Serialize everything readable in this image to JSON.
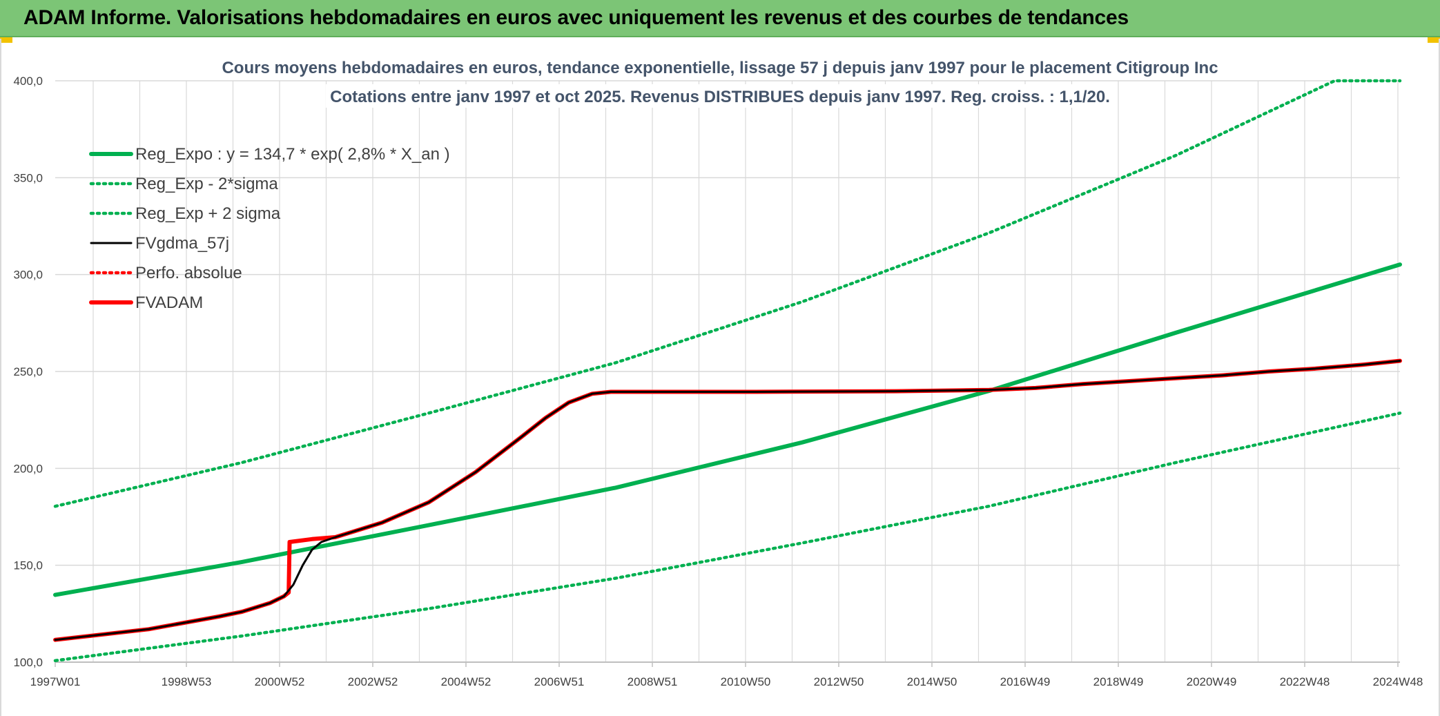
{
  "banner": {
    "title": "ADAM Informe. Valorisations hebdomadaires en euros avec uniquement les revenus et des courbes de tendances"
  },
  "chart_data": {
    "type": "line",
    "title_lines": [
      "Cours moyens hebdomadaires en euros, tendance exponentielle, lissage 57 j depuis janv 1997 pour le placement Citigroup Inc",
      "Cotations entre janv 1997 et oct 2025. Revenus DISTRIBUES depuis janv 1997. Reg. croiss. : 1,1/20."
    ],
    "xlabel": "",
    "ylabel": "",
    "x_ticks": [
      "1997W01",
      "1998W53",
      "2000W52",
      "2002W52",
      "2004W52",
      "2006W51",
      "2008W51",
      "2010W50",
      "2012W50",
      "2014W50",
      "2016W49",
      "2018W49",
      "2020W49",
      "2022W48",
      "2024W48"
    ],
    "x_range_years": [
      1997.0,
      2025.8
    ],
    "ylim": [
      100,
      400
    ],
    "y_ticks": [
      "100,0",
      "150,0",
      "200,0",
      "250,0",
      "300,0",
      "350,0",
      "400,0"
    ],
    "grid": true,
    "legend_position": "top-left",
    "series": [
      {
        "name": "Reg_Expo : y = 134,7 * exp( 2,8% *  X_an )",
        "color": "#00b050",
        "style": "solid",
        "points": [
          [
            1997.0,
            134.7
          ],
          [
            2001.0,
            151.7
          ],
          [
            2005.0,
            170.7
          ],
          [
            2009.0,
            190.0
          ],
          [
            2013.0,
            213.4
          ],
          [
            2017.0,
            240.0
          ],
          [
            2021.0,
            270.0
          ],
          [
            2025.8,
            305.2
          ]
        ]
      },
      {
        "name": "Reg_Exp - 2*sigma",
        "color": "#00b050",
        "style": "dotted",
        "points": [
          [
            1997.0,
            100.8
          ],
          [
            2001.0,
            113.5
          ],
          [
            2005.0,
            127.6
          ],
          [
            2009.0,
            143.3
          ],
          [
            2013.0,
            161.5
          ],
          [
            2017.0,
            180.5
          ],
          [
            2021.0,
            203.0
          ],
          [
            2025.8,
            228.5
          ]
        ]
      },
      {
        "name": "Reg_Exp + 2 sigma",
        "color": "#00b050",
        "style": "dotted",
        "points": [
          [
            1997.0,
            180.4
          ],
          [
            2001.0,
            203.0
          ],
          [
            2005.0,
            228.5
          ],
          [
            2009.0,
            254.5
          ],
          [
            2013.0,
            286.0
          ],
          [
            2017.0,
            321.5
          ],
          [
            2021.0,
            361.5
          ],
          [
            2024.4,
            400.0
          ],
          [
            2025.8,
            400.0
          ]
        ]
      },
      {
        "name": "FVgdma_57j",
        "color": "#000000",
        "style": "solid",
        "points": [
          [
            1997.0,
            111.5
          ],
          [
            1999.0,
            117.0
          ],
          [
            2000.5,
            123.5
          ],
          [
            2001.0,
            126.0
          ],
          [
            2001.6,
            130.5
          ],
          [
            2001.9,
            134.0
          ],
          [
            2002.1,
            140.0
          ],
          [
            2002.3,
            150.0
          ],
          [
            2002.5,
            158.0
          ],
          [
            2002.7,
            162.0
          ],
          [
            2003.0,
            164.5
          ],
          [
            2004.0,
            172.0
          ],
          [
            2005.0,
            182.5
          ],
          [
            2006.0,
            198.0
          ],
          [
            2007.0,
            216.5
          ],
          [
            2007.5,
            226.0
          ],
          [
            2008.0,
            234.0
          ],
          [
            2008.5,
            238.5
          ],
          [
            2008.9,
            239.5
          ],
          [
            2012.0,
            239.5
          ],
          [
            2015.0,
            239.8
          ],
          [
            2017.0,
            240.5
          ],
          [
            2018.0,
            241.5
          ],
          [
            2019.0,
            243.5
          ],
          [
            2020.0,
            245.0
          ],
          [
            2021.0,
            246.5
          ],
          [
            2022.0,
            248.0
          ],
          [
            2023.0,
            250.0
          ],
          [
            2024.0,
            251.5
          ],
          [
            2025.0,
            253.5
          ],
          [
            2025.8,
            255.5
          ]
        ]
      },
      {
        "name": "Perfo. absolue",
        "color": "#ff0000",
        "style": "dotted",
        "points": [
          [
            1997.0,
            111.5
          ],
          [
            1999.0,
            117.0
          ],
          [
            2000.5,
            123.5
          ],
          [
            2001.0,
            126.0
          ],
          [
            2001.6,
            130.5
          ],
          [
            2001.9,
            134.0
          ],
          [
            2002.0,
            136.0
          ],
          [
            2002.02,
            162.0
          ],
          [
            2002.5,
            163.5
          ],
          [
            2003.0,
            164.5
          ],
          [
            2004.0,
            172.0
          ],
          [
            2005.0,
            182.5
          ],
          [
            2006.0,
            198.0
          ],
          [
            2007.0,
            216.5
          ],
          [
            2007.5,
            226.0
          ],
          [
            2008.0,
            234.0
          ],
          [
            2008.5,
            238.5
          ],
          [
            2008.9,
            239.5
          ],
          [
            2012.0,
            239.5
          ],
          [
            2015.0,
            239.8
          ],
          [
            2017.0,
            240.5
          ],
          [
            2018.0,
            241.5
          ],
          [
            2019.0,
            243.5
          ],
          [
            2020.0,
            245.0
          ],
          [
            2021.0,
            246.5
          ],
          [
            2022.0,
            248.0
          ],
          [
            2023.0,
            250.0
          ],
          [
            2024.0,
            251.5
          ],
          [
            2025.0,
            253.5
          ],
          [
            2025.8,
            255.5
          ]
        ]
      },
      {
        "name": "FVADAM",
        "color": "#ff0000",
        "style": "solid",
        "points": [
          [
            1997.0,
            111.5
          ],
          [
            1999.0,
            117.0
          ],
          [
            2000.5,
            123.5
          ],
          [
            2001.0,
            126.0
          ],
          [
            2001.6,
            130.5
          ],
          [
            2001.9,
            134.0
          ],
          [
            2002.0,
            136.0
          ],
          [
            2002.02,
            162.0
          ],
          [
            2002.5,
            163.5
          ],
          [
            2003.0,
            164.5
          ],
          [
            2004.0,
            172.0
          ],
          [
            2005.0,
            182.5
          ],
          [
            2006.0,
            198.0
          ],
          [
            2007.0,
            216.5
          ],
          [
            2007.5,
            226.0
          ],
          [
            2008.0,
            234.0
          ],
          [
            2008.5,
            238.5
          ],
          [
            2008.9,
            239.5
          ],
          [
            2012.0,
            239.5
          ],
          [
            2015.0,
            239.8
          ],
          [
            2017.0,
            240.5
          ],
          [
            2018.0,
            241.5
          ],
          [
            2019.0,
            243.5
          ],
          [
            2020.0,
            245.0
          ],
          [
            2021.0,
            246.5
          ],
          [
            2022.0,
            248.0
          ],
          [
            2023.0,
            250.0
          ],
          [
            2024.0,
            251.5
          ],
          [
            2025.0,
            253.5
          ],
          [
            2025.8,
            255.5
          ]
        ]
      }
    ]
  }
}
